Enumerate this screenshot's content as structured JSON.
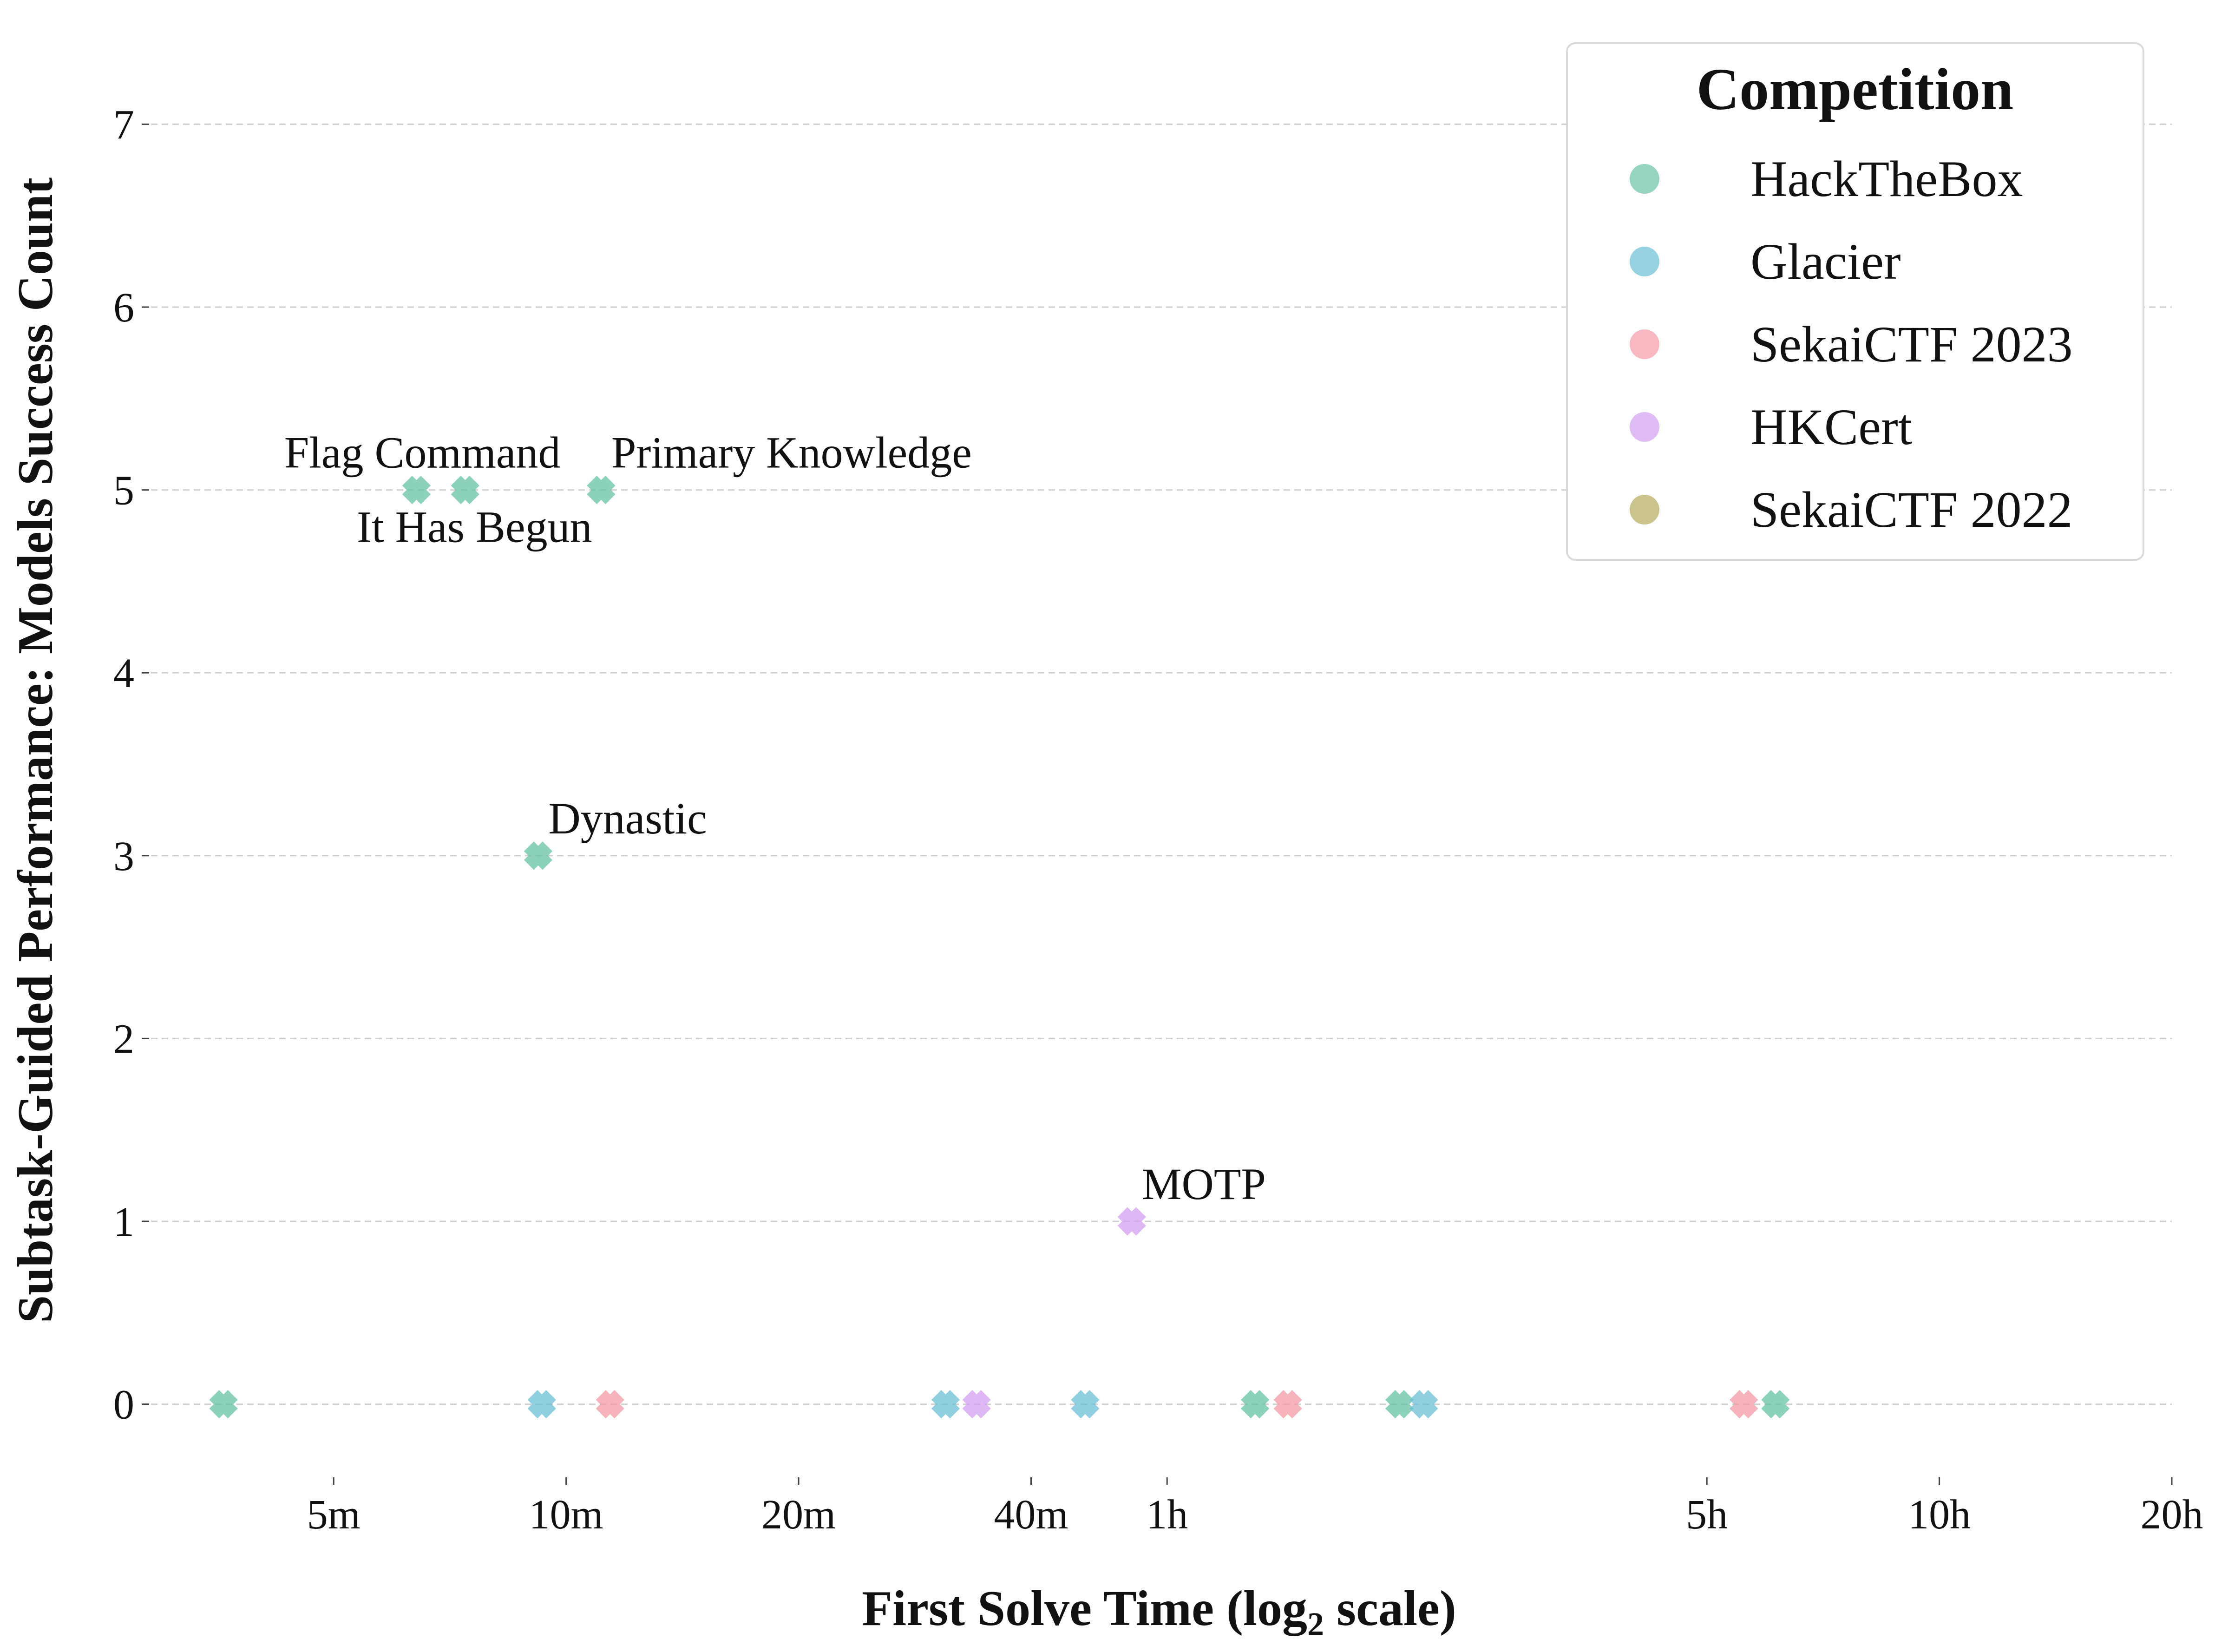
{
  "chart_data": {
    "type": "scatter",
    "title": "",
    "xlabel": "First Solve Time (log",
    "xlabel_sub": "2",
    "xlabel_suffix": " scale)",
    "ylabel": "Subtask-Guided Performance: Models Success Count",
    "x_unit": "minutes",
    "x_scale": "log2",
    "xlim": [
      2.9,
      1200
    ],
    "ylim": [
      -0.4,
      7.4
    ],
    "x_ticks": [
      {
        "value": 5,
        "label": "5m"
      },
      {
        "value": 10,
        "label": "10m"
      },
      {
        "value": 20,
        "label": "20m"
      },
      {
        "value": 40,
        "label": "40m"
      },
      {
        "value": 60,
        "label": "1h"
      },
      {
        "value": 300,
        "label": "5h"
      },
      {
        "value": 600,
        "label": "10h"
      },
      {
        "value": 1200,
        "label": "20h"
      }
    ],
    "y_ticks": [
      0,
      1,
      2,
      3,
      4,
      5,
      6,
      7
    ],
    "grid": "y-dashed",
    "marker": "x",
    "legend": {
      "title": "Competition",
      "position": "top-right",
      "entries": [
        {
          "name": "HackTheBox",
          "color": "#66c2a5"
        },
        {
          "name": "Glacier",
          "color": "#6bbfd6"
        },
        {
          "name": "SekaiCTF 2023",
          "color": "#f59aa6"
        },
        {
          "name": "HKCert",
          "color": "#d3a0f2"
        },
        {
          "name": "SekaiCTF 2022",
          "color": "#b4a95a"
        }
      ]
    },
    "series": [
      {
        "name": "HackTheBox",
        "color": "#66c2a5",
        "points": [
          {
            "x": 3.6,
            "y": 0
          },
          {
            "x": 6.4,
            "y": 5,
            "label": "Flag Command",
            "label_pos": "above-left"
          },
          {
            "x": 7.4,
            "y": 5,
            "label": "It Has Begun",
            "label_pos": "below"
          },
          {
            "x": 9.2,
            "y": 3,
            "label": "Dynastic",
            "label_pos": "above-right"
          },
          {
            "x": 11.1,
            "y": 5,
            "label": "Primary Knowledge",
            "label_pos": "above-right"
          },
          {
            "x": 78,
            "y": 0
          },
          {
            "x": 120,
            "y": 0
          },
          {
            "x": 368,
            "y": 0
          }
        ]
      },
      {
        "name": "Glacier",
        "color": "#6bbfd6",
        "points": [
          {
            "x": 9.3,
            "y": 0
          },
          {
            "x": 31,
            "y": 0
          },
          {
            "x": 47,
            "y": 0
          },
          {
            "x": 129,
            "y": 0
          }
        ]
      },
      {
        "name": "SekaiCTF 2023",
        "color": "#f59aa6",
        "points": [
          {
            "x": 11.4,
            "y": 0
          },
          {
            "x": 86,
            "y": 0
          },
          {
            "x": 335,
            "y": 0
          }
        ]
      },
      {
        "name": "HKCert",
        "color": "#d3a0f2",
        "points": [
          {
            "x": 34,
            "y": 0
          },
          {
            "x": 54,
            "y": 1,
            "label": "MOTP",
            "label_pos": "above-right"
          }
        ]
      },
      {
        "name": "SekaiCTF 2022",
        "color": "#b4a95a",
        "points": []
      }
    ]
  }
}
